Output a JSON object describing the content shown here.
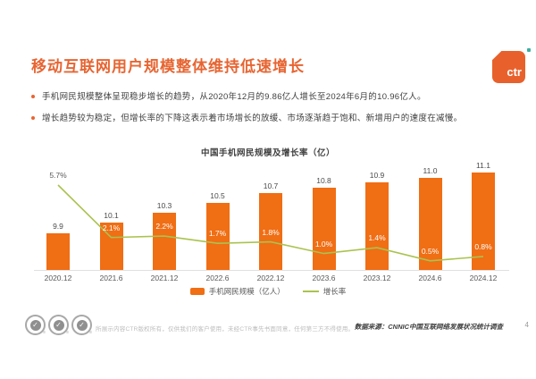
{
  "page": {
    "title": "移动互联网用户规模整体维持低速增长",
    "logo_text": "ctr",
    "page_number": "4"
  },
  "bullets": [
    "手机网民规模整体呈现稳步增长的趋势，从2020年12月的9.86亿人增长至2024年6月的10.96亿人。",
    "增长趋势较为稳定，但增长率的下降这表示着市场增长的放缓、市场逐渐趋于饱和、新增用户的速度在减慢。"
  ],
  "chart_data": {
    "type": "bar",
    "title": "中国手机网民规模及增长率（亿）",
    "categories": [
      "2020.12",
      "2021.6",
      "2021.12",
      "2022.6",
      "2022.12",
      "2023.6",
      "2023.12",
      "2024.6",
      "2024.12"
    ],
    "series": [
      {
        "name": "手机网民规模（亿人）",
        "type": "bar",
        "values": [
          9.9,
          10.1,
          10.3,
          10.5,
          10.7,
          10.8,
          10.9,
          11.0,
          11.1
        ],
        "color": "#F06E14"
      },
      {
        "name": "增长率",
        "type": "line",
        "values": [
          5.7,
          2.1,
          2.2,
          1.7,
          1.8,
          1.0,
          1.4,
          0.5,
          0.8
        ],
        "labels": [
          "5.7%",
          "2.1%",
          "2.2%",
          "1.7%",
          "1.8%",
          "1.0%",
          "1.4%",
          "0.5%",
          "0.8%"
        ],
        "color": "#A9C34F"
      }
    ],
    "xlabel": "",
    "ylabel": "",
    "grid": false,
    "legend_position": "bottom",
    "bar_axis_visible_range": [
      9.17,
      11.3
    ],
    "line_axis_range_pct": [
      0,
      6
    ]
  },
  "footer": {
    "disclaimer": "所展示内容CTR版权所有，仅供我们的客户使用，未经CTR事先书面同意，任何第三方不得使用。",
    "source": "数据来源：CNNIC中国互联网络发展状况统计调查",
    "page_number": "4"
  },
  "colors": {
    "title_orange": "#E76532",
    "bar_orange": "#F06E14",
    "line_green": "#A9C34F",
    "text_dark": "#404040",
    "text_gray": "#595959",
    "logo_dot_teal": "#3BAFA0"
  }
}
